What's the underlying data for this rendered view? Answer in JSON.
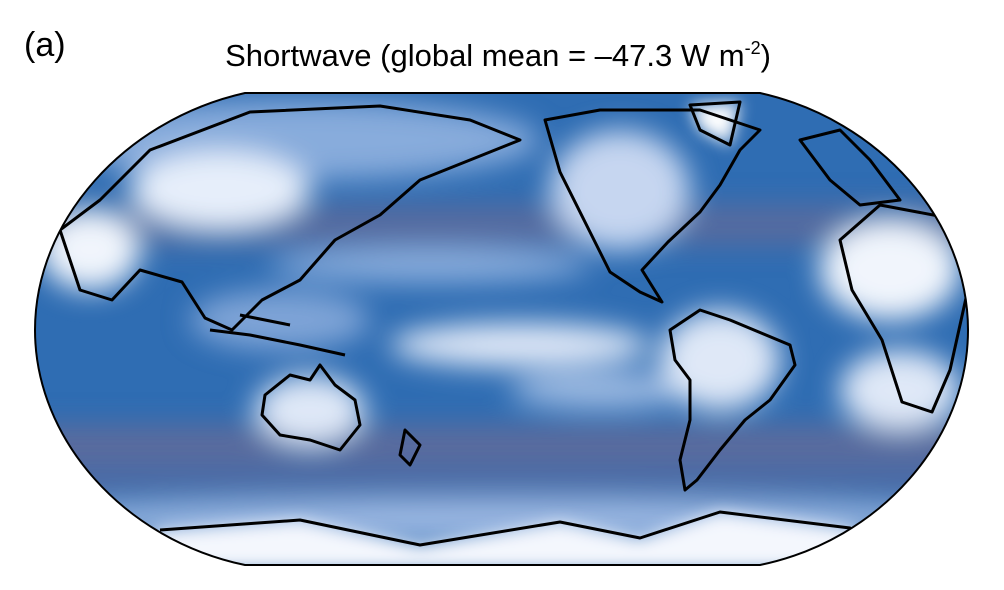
{
  "panel_label": "(a)",
  "title": {
    "text": "Shortwave (global mean = –47.3 W m",
    "superscript": "-2",
    "suffix": ")"
  }
}
